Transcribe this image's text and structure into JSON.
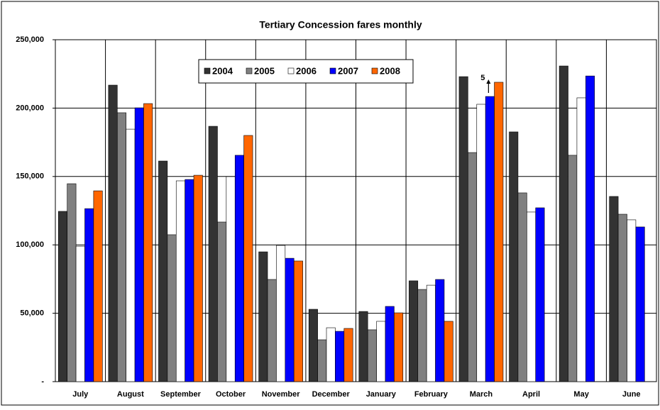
{
  "chart_data": {
    "type": "bar",
    "title": "Tertiary Concession fares monthly",
    "categories": [
      "July",
      "August",
      "September",
      "October",
      "November",
      "December",
      "January",
      "February",
      "March",
      "April",
      "May",
      "June"
    ],
    "series": [
      {
        "name": "2004",
        "color": "#333333",
        "values": [
          124500,
          216800,
          161300,
          186700,
          94900,
          52900,
          51300,
          73700,
          223000,
          182600,
          230800,
          135400
        ]
      },
      {
        "name": "2005",
        "color": "#808080",
        "values": [
          144700,
          196600,
          107400,
          116700,
          74700,
          30600,
          37900,
          67400,
          167500,
          138000,
          165500,
          122400
        ]
      },
      {
        "name": "2006",
        "color": "#ffffff",
        "values": [
          99000,
          184600,
          146800,
          149900,
          99600,
          39400,
          44100,
          70500,
          202800,
          124000,
          207500,
          118300
        ]
      },
      {
        "name": "2007",
        "color": "#0000ff",
        "values": [
          126500,
          200200,
          147800,
          165500,
          90200,
          36800,
          55000,
          74700,
          208500,
          127100,
          223500,
          113100
        ]
      },
      {
        "name": "2008",
        "color": "#ff6600",
        "values": [
          139500,
          203300,
          150900,
          180000,
          88200,
          38900,
          50300,
          44100,
          218900,
          null,
          null,
          null
        ]
      }
    ],
    "annotation": "5",
    "ylim": [
      0,
      250000
    ],
    "yticks": [
      {
        "value": 0,
        "label": "-"
      },
      {
        "value": 50000,
        "label": "50,000"
      },
      {
        "value": 100000,
        "label": "100,000"
      },
      {
        "value": 150000,
        "label": "150,000"
      },
      {
        "value": 200000,
        "label": "200,000"
      },
      {
        "value": 250000,
        "label": "250,000"
      }
    ],
    "grid": true
  }
}
